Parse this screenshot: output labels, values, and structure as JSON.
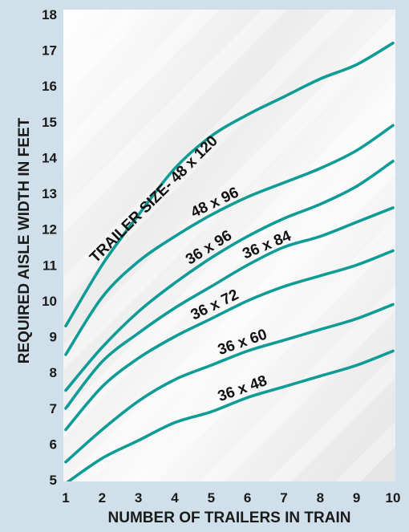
{
  "chart_data": {
    "type": "line",
    "title": "",
    "xlabel": "NUMBER OF TRAILERS IN TRAIN",
    "ylabel": "REQUIRED AISLE WIDTH IN FEET",
    "x": [
      1,
      2,
      3,
      4,
      5,
      6,
      7,
      8,
      9,
      10
    ],
    "xlim": [
      1,
      10
    ],
    "ylim": [
      5,
      18
    ],
    "x_ticks": [
      "1",
      "2",
      "3",
      "4",
      "5",
      "6",
      "7",
      "8",
      "9",
      "10"
    ],
    "y_ticks": [
      "5",
      "6",
      "7",
      "8",
      "9",
      "10",
      "11",
      "12",
      "13",
      "14",
      "15",
      "16",
      "17",
      "18"
    ],
    "grid": false,
    "series": [
      {
        "name": "TRAILER SIZE- 48 x 120",
        "color": "#0f9b96",
        "values": [
          9.3,
          11.0,
          12.4,
          13.7,
          14.6,
          15.2,
          15.7,
          16.2,
          16.6,
          17.2
        ]
      },
      {
        "name": "48 x 96",
        "color": "#0f9b96",
        "values": [
          8.5,
          10.1,
          11.1,
          11.8,
          12.4,
          12.9,
          13.3,
          13.7,
          14.2,
          14.9
        ]
      },
      {
        "name": "36 x 96",
        "color": "#0f9b96",
        "values": [
          7.5,
          8.7,
          9.7,
          10.5,
          11.2,
          11.8,
          12.3,
          12.7,
          13.2,
          13.9
        ]
      },
      {
        "name": "36 x 84",
        "color": "#0f9b96",
        "values": [
          7.0,
          8.3,
          9.1,
          9.8,
          10.4,
          11.0,
          11.5,
          11.8,
          12.2,
          12.6
        ]
      },
      {
        "name": "36 x 72",
        "color": "#0f9b96",
        "values": [
          6.4,
          7.6,
          8.4,
          9.0,
          9.5,
          10.0,
          10.4,
          10.7,
          11.0,
          11.4
        ]
      },
      {
        "name": "36 x 60",
        "color": "#0f9b96",
        "values": [
          5.5,
          6.4,
          7.2,
          7.8,
          8.2,
          8.6,
          8.9,
          9.2,
          9.5,
          9.9
        ]
      },
      {
        "name": "36 x 48",
        "color": "#0f9b96",
        "values": [
          4.9,
          5.6,
          6.1,
          6.6,
          6.9,
          7.3,
          7.6,
          7.9,
          8.2,
          8.6
        ]
      }
    ]
  }
}
